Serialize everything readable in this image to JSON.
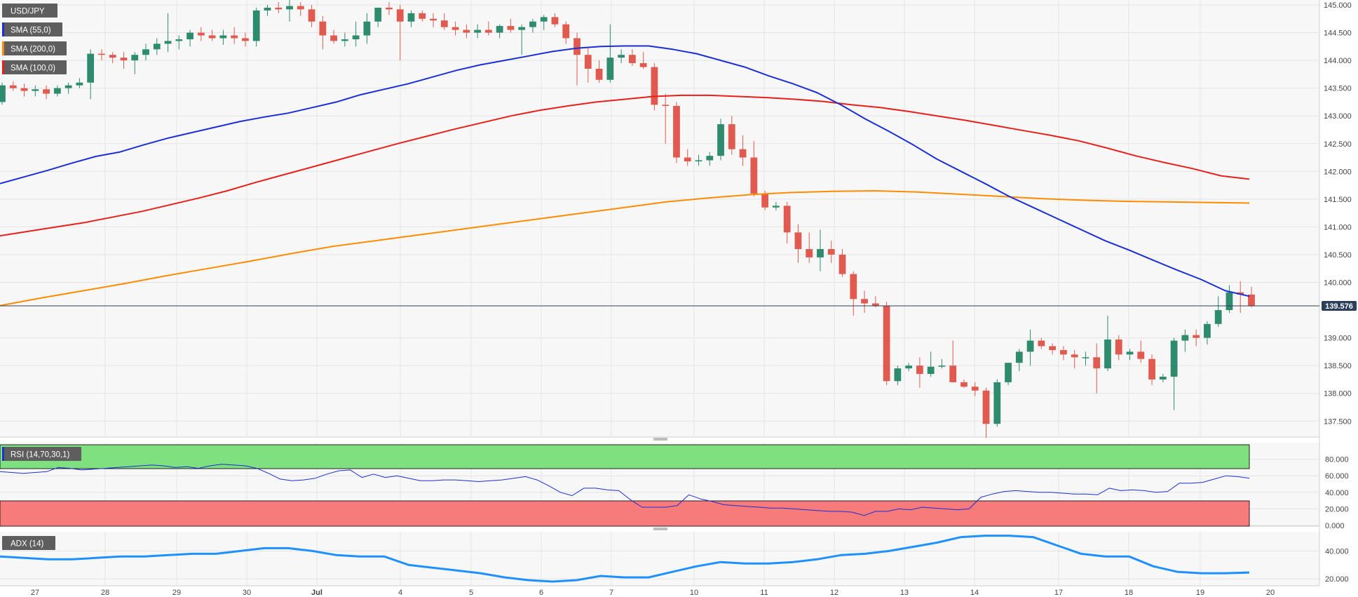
{
  "symbol": "USD/JPY",
  "indicators": {
    "sma55": {
      "label": "SMA (55,0)",
      "color": "#1a2fd6"
    },
    "sma200": {
      "label": "SMA (200,0)",
      "color": "#ff8c00"
    },
    "sma100": {
      "label": "SMA (100,0)",
      "color": "#e8201a"
    },
    "rsi": {
      "label": "RSI (14,70,30,1)",
      "color": "#1a2fd6"
    },
    "adx": {
      "label": "ADX (14)",
      "color": "#1e90ff"
    }
  },
  "last_price": "139.576",
  "colors": {
    "up": "#2e8b6e",
    "down": "#e05a4f",
    "rsi_overbought": "#7ee07e",
    "rsi_oversold": "#f77b7b",
    "price_line": "#2b3f5c"
  },
  "chart_data": [
    {
      "type": "candlestick",
      "title": "USD/JPY",
      "ylim": [
        137.25,
        145.0
      ],
      "y_ticks": [
        "145.000",
        "144.500",
        "144.000",
        "143.500",
        "143.000",
        "142.500",
        "142.000",
        "141.500",
        "141.000",
        "140.500",
        "140.000",
        "139.000",
        "138.500",
        "138.000",
        "137.500"
      ],
      "x_ticks": [
        "27",
        "28",
        "29",
        "30",
        "Jul",
        "4",
        "5",
        "6",
        "7",
        "10",
        "11",
        "12",
        "13",
        "14",
        "17",
        "18",
        "19",
        "20"
      ],
      "grid": true,
      "last_value": 139.576,
      "candles": [
        [
          143.25,
          143.6,
          143.2,
          143.55
        ],
        [
          143.55,
          143.62,
          143.45,
          143.5
        ],
        [
          143.5,
          143.58,
          143.35,
          143.45
        ],
        [
          143.45,
          143.55,
          143.35,
          143.48
        ],
        [
          143.48,
          143.55,
          143.3,
          143.4
        ],
        [
          143.4,
          143.55,
          143.35,
          143.5
        ],
        [
          143.5,
          143.6,
          143.4,
          143.55
        ],
        [
          143.55,
          143.68,
          143.5,
          143.6
        ],
        [
          143.6,
          144.2,
          143.3,
          144.12
        ],
        [
          144.12,
          144.2,
          144.0,
          144.1
        ],
        [
          144.1,
          144.15,
          143.95,
          144.05
        ],
        [
          144.05,
          144.15,
          143.85,
          144.0
        ],
        [
          144.0,
          144.15,
          143.75,
          144.1
        ],
        [
          144.1,
          144.3,
          144.0,
          144.2
        ],
        [
          144.2,
          144.4,
          144.1,
          144.3
        ],
        [
          144.3,
          144.85,
          144.15,
          144.35
        ],
        [
          144.35,
          144.45,
          144.2,
          144.38
        ],
        [
          144.38,
          144.55,
          144.25,
          144.5
        ],
        [
          144.5,
          144.6,
          144.35,
          144.45
        ],
        [
          144.45,
          144.55,
          144.35,
          144.4
        ],
        [
          144.4,
          144.55,
          144.28,
          144.45
        ],
        [
          144.45,
          144.6,
          144.3,
          144.4
        ],
        [
          144.4,
          144.5,
          144.25,
          144.35
        ],
        [
          144.35,
          144.95,
          144.25,
          144.9
        ],
        [
          144.9,
          145.0,
          144.8,
          144.95
        ],
        [
          144.95,
          145.05,
          144.85,
          144.92
        ],
        [
          144.92,
          145.1,
          144.7,
          144.98
        ],
        [
          144.98,
          145.05,
          144.8,
          144.92
        ],
        [
          144.92,
          145.0,
          144.6,
          144.7
        ],
        [
          144.7,
          144.8,
          144.2,
          144.45
        ],
        [
          144.45,
          144.55,
          144.3,
          144.35
        ],
        [
          144.35,
          144.5,
          144.25,
          144.38
        ],
        [
          144.38,
          144.7,
          144.25,
          144.45
        ],
        [
          144.45,
          144.85,
          144.3,
          144.7
        ],
        [
          144.7,
          144.9,
          144.6,
          144.95
        ],
        [
          144.95,
          145.05,
          144.82,
          144.92
        ],
        [
          144.92,
          145.0,
          144.0,
          144.7
        ],
        [
          144.7,
          144.9,
          144.6,
          144.85
        ],
        [
          144.85,
          144.9,
          144.7,
          144.75
        ],
        [
          144.75,
          144.85,
          144.6,
          144.72
        ],
        [
          144.72,
          144.85,
          144.55,
          144.6
        ],
        [
          144.6,
          144.7,
          144.45,
          144.55
        ],
        [
          144.55,
          144.65,
          144.4,
          144.5
        ],
        [
          144.5,
          144.65,
          144.4,
          144.55
        ],
        [
          144.55,
          144.7,
          144.45,
          144.5
        ],
        [
          144.5,
          144.65,
          144.4,
          144.62
        ],
        [
          144.62,
          144.75,
          144.5,
          144.55
        ],
        [
          144.55,
          144.65,
          144.1,
          144.6
        ],
        [
          144.6,
          144.75,
          144.5,
          144.7
        ],
        [
          144.7,
          144.82,
          144.55,
          144.78
        ],
        [
          144.78,
          144.85,
          144.6,
          144.65
        ],
        [
          144.65,
          144.7,
          144.3,
          144.4
        ],
        [
          144.4,
          144.5,
          143.55,
          144.1
        ],
        [
          144.1,
          144.25,
          143.6,
          143.85
        ],
        [
          143.85,
          144.0,
          143.6,
          143.65
        ],
        [
          143.65,
          144.65,
          143.6,
          144.05
        ],
        [
          144.05,
          144.2,
          143.95,
          144.1
        ],
        [
          144.1,
          144.2,
          143.9,
          143.95
        ],
        [
          143.95,
          144.15,
          143.85,
          143.88
        ],
        [
          143.88,
          143.95,
          143.1,
          143.2
        ],
        [
          143.2,
          143.4,
          142.5,
          143.18
        ],
        [
          143.18,
          143.25,
          142.15,
          142.25
        ],
        [
          142.25,
          142.4,
          142.1,
          142.18
        ],
        [
          142.18,
          142.3,
          142.1,
          142.2
        ],
        [
          142.2,
          142.35,
          142.1,
          142.28
        ],
        [
          142.28,
          142.95,
          142.2,
          142.85
        ],
        [
          142.85,
          143.0,
          142.3,
          142.4
        ],
        [
          142.4,
          142.65,
          142.1,
          142.25
        ],
        [
          142.25,
          142.55,
          141.55,
          141.6
        ],
        [
          141.6,
          141.65,
          141.3,
          141.35
        ],
        [
          141.35,
          141.45,
          141.3,
          141.38
        ],
        [
          141.38,
          141.45,
          140.7,
          140.9
        ],
        [
          140.9,
          141.05,
          140.35,
          140.6
        ],
        [
          140.6,
          140.9,
          140.35,
          140.45
        ],
        [
          140.45,
          140.95,
          140.2,
          140.6
        ],
        [
          140.6,
          140.75,
          140.35,
          140.5
        ],
        [
          140.5,
          140.6,
          140.1,
          140.15
        ],
        [
          140.15,
          140.2,
          139.4,
          139.7
        ],
        [
          139.7,
          139.85,
          139.45,
          139.62
        ],
        [
          139.62,
          139.75,
          139.55,
          139.58
        ],
        [
          139.58,
          139.65,
          138.15,
          138.22
        ],
        [
          138.22,
          138.5,
          138.15,
          138.45
        ],
        [
          138.45,
          138.55,
          138.4,
          138.5
        ],
        [
          138.5,
          138.65,
          138.1,
          138.35
        ],
        [
          138.35,
          138.75,
          138.3,
          138.48
        ],
        [
          138.48,
          138.62,
          138.45,
          138.5
        ],
        [
          138.5,
          138.95,
          138.2,
          138.2
        ],
        [
          138.2,
          138.25,
          138.1,
          138.12
        ],
        [
          138.12,
          138.2,
          137.95,
          138.05
        ],
        [
          138.05,
          138.1,
          137.2,
          137.45
        ],
        [
          137.45,
          138.25,
          137.4,
          138.2
        ],
        [
          138.2,
          138.55,
          138.15,
          138.55
        ],
        [
          138.55,
          138.8,
          138.4,
          138.75
        ],
        [
          138.75,
          139.15,
          138.5,
          138.95
        ],
        [
          138.95,
          139.0,
          138.8,
          138.85
        ],
        [
          138.85,
          138.9,
          138.7,
          138.78
        ],
        [
          138.78,
          138.85,
          138.6,
          138.7
        ],
        [
          138.7,
          138.78,
          138.45,
          138.65
        ],
        [
          138.65,
          138.75,
          138.5,
          138.65
        ],
        [
          138.65,
          138.9,
          138.0,
          138.45
        ],
        [
          138.45,
          139.4,
          138.4,
          138.97
        ],
        [
          138.97,
          139.05,
          138.6,
          138.7
        ],
        [
          138.7,
          138.8,
          138.6,
          138.75
        ],
        [
          138.75,
          138.95,
          138.55,
          138.62
        ],
        [
          138.62,
          138.7,
          138.15,
          138.25
        ],
        [
          138.25,
          138.35,
          138.2,
          138.3
        ],
        [
          138.3,
          139.0,
          137.7,
          138.95
        ],
        [
          138.95,
          139.15,
          138.75,
          139.05
        ],
        [
          139.05,
          139.15,
          138.85,
          139.0
        ],
        [
          139.0,
          139.3,
          138.88,
          139.25
        ],
        [
          139.25,
          139.75,
          139.2,
          139.5
        ],
        [
          139.5,
          139.95,
          139.45,
          139.82
        ],
        [
          139.82,
          140.02,
          139.45,
          139.78
        ],
        [
          139.78,
          139.92,
          139.55,
          139.58
        ]
      ],
      "series": [
        {
          "name": "SMA (55,0)",
          "values": [
            141.78,
            141.9,
            142.02,
            142.15,
            142.27,
            142.35,
            142.48,
            142.6,
            142.7,
            142.8,
            142.9,
            142.98,
            143.05,
            143.15,
            143.25,
            143.38,
            143.48,
            143.58,
            143.7,
            143.82,
            143.92,
            144.0,
            144.08,
            144.16,
            144.22,
            144.25,
            144.26,
            144.26,
            144.2,
            144.12,
            144.0,
            143.88,
            143.72,
            143.58,
            143.42,
            143.2,
            142.95,
            142.72,
            142.48,
            142.22,
            142.0,
            141.78,
            141.55,
            141.35,
            141.15,
            140.95,
            140.75,
            140.58,
            140.4,
            140.22,
            140.05,
            139.85,
            139.75
          ]
        },
        {
          "name": "SMA (100,0)",
          "values": [
            140.84,
            140.92,
            141.0,
            141.08,
            141.18,
            141.28,
            141.4,
            141.52,
            141.65,
            141.8,
            141.94,
            142.08,
            142.22,
            142.36,
            142.5,
            142.63,
            142.76,
            142.88,
            143.0,
            143.1,
            143.18,
            143.25,
            143.3,
            143.35,
            143.37,
            143.37,
            143.35,
            143.33,
            143.3,
            143.26,
            143.2,
            143.15,
            143.08,
            143.0,
            142.92,
            142.83,
            142.74,
            142.65,
            142.55,
            142.42,
            142.28,
            142.16,
            142.05,
            141.92,
            141.86
          ]
        },
        {
          "name": "SMA (200,0)",
          "values": [
            139.58,
            139.72,
            139.85,
            139.98,
            140.12,
            140.25,
            140.38,
            140.52,
            140.65,
            140.75,
            140.85,
            140.95,
            141.05,
            141.15,
            141.25,
            141.35,
            141.45,
            141.52,
            141.58,
            141.62,
            141.64,
            141.65,
            141.63,
            141.59,
            141.55,
            141.51,
            141.48,
            141.46,
            141.45,
            141.44,
            141.43
          ]
        }
      ]
    },
    {
      "type": "line",
      "title": "RSI (14,70,30,1)",
      "ylim": [
        0,
        100
      ],
      "y_ticks": [
        "80.000",
        "60.000",
        "40.000",
        "20.000",
        "0.000"
      ],
      "overbought": 70,
      "oversold": 30,
      "series": [
        {
          "name": "RSI (14,70,30,1)",
          "values": [
            65,
            64,
            63,
            64,
            65,
            70,
            69,
            67,
            68,
            69,
            70,
            71,
            72,
            73,
            72,
            70,
            71,
            69,
            72,
            74,
            73,
            72,
            69,
            63,
            56,
            54,
            55,
            57,
            62,
            66,
            67,
            58,
            62,
            58,
            60,
            57,
            54,
            54,
            55,
            55,
            54,
            53,
            54,
            55,
            57,
            59,
            55,
            48,
            40,
            36,
            45,
            45,
            43,
            42,
            31,
            22,
            22,
            22,
            24,
            37,
            32,
            29,
            25,
            24,
            23,
            22,
            21,
            21,
            20,
            19,
            18,
            17,
            17,
            16,
            12,
            17,
            17,
            20,
            19,
            22,
            21,
            20,
            19,
            20,
            34,
            38,
            41,
            42,
            41,
            40,
            40,
            39,
            38,
            38,
            37,
            45,
            42,
            43,
            42,
            40,
            41,
            51,
            51,
            52,
            56,
            60,
            59,
            57
          ]
        }
      ]
    },
    {
      "type": "line",
      "title": "ADX (14)",
      "y_ticks": [
        "40.000",
        "20.000"
      ],
      "series": [
        {
          "name": "ADX (14)",
          "values": [
            36,
            35,
            34,
            34,
            35,
            36,
            36,
            37,
            38,
            38,
            40,
            42,
            42,
            40,
            37,
            36,
            36,
            30,
            28,
            26,
            24,
            21,
            19,
            18,
            19,
            22,
            21,
            21,
            25,
            29,
            32,
            31,
            31,
            32,
            34,
            37,
            38,
            40,
            43,
            46,
            50,
            51,
            51,
            50,
            44,
            38,
            36,
            36,
            29,
            25,
            24,
            24,
            24.5
          ]
        }
      ]
    }
  ]
}
